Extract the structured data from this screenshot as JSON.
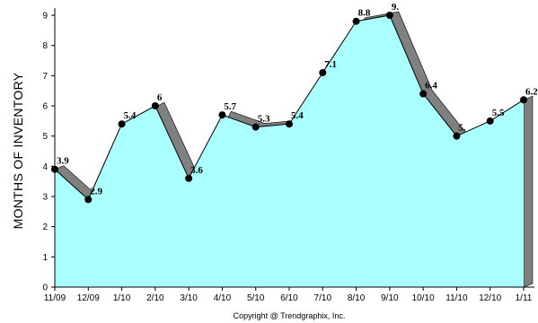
{
  "chart_data": {
    "type": "area",
    "title": "",
    "xlabel": "",
    "ylabel": "MONTHS OF INVENTORY",
    "categories": [
      "11/09",
      "12/09",
      "1/10",
      "2/10",
      "3/10",
      "4/10",
      "5/10",
      "6/10",
      "7/10",
      "8/10",
      "9/10",
      "10/10",
      "11/10",
      "12/10",
      "1/11"
    ],
    "series": [
      {
        "values": [
          3.9,
          2.9,
          5.4,
          6,
          3.6,
          5.7,
          5.3,
          5.4,
          7.1,
          8.8,
          9.0,
          6.4,
          5.0,
          5.5,
          6.2
        ]
      }
    ],
    "data_labels": [
      "3.9",
      "2.9",
      "5.4",
      "6",
      "3.6",
      "5.7",
      "5.3",
      "5.4",
      "7.1",
      "8.8",
      "9.",
      "6.4",
      "5.",
      "5.5",
      "6.2"
    ],
    "ylim": [
      0,
      9
    ],
    "yticks": [
      0,
      1,
      2,
      3,
      4,
      5,
      6,
      7,
      8,
      9
    ],
    "grid": false,
    "legend": "none",
    "colors": {
      "area": "#aaffff",
      "shadow": "#808080",
      "line": "#000000",
      "marker": "#000000"
    }
  },
  "footer": {
    "copyright": "Copyright @ Trendgraphix, Inc."
  }
}
